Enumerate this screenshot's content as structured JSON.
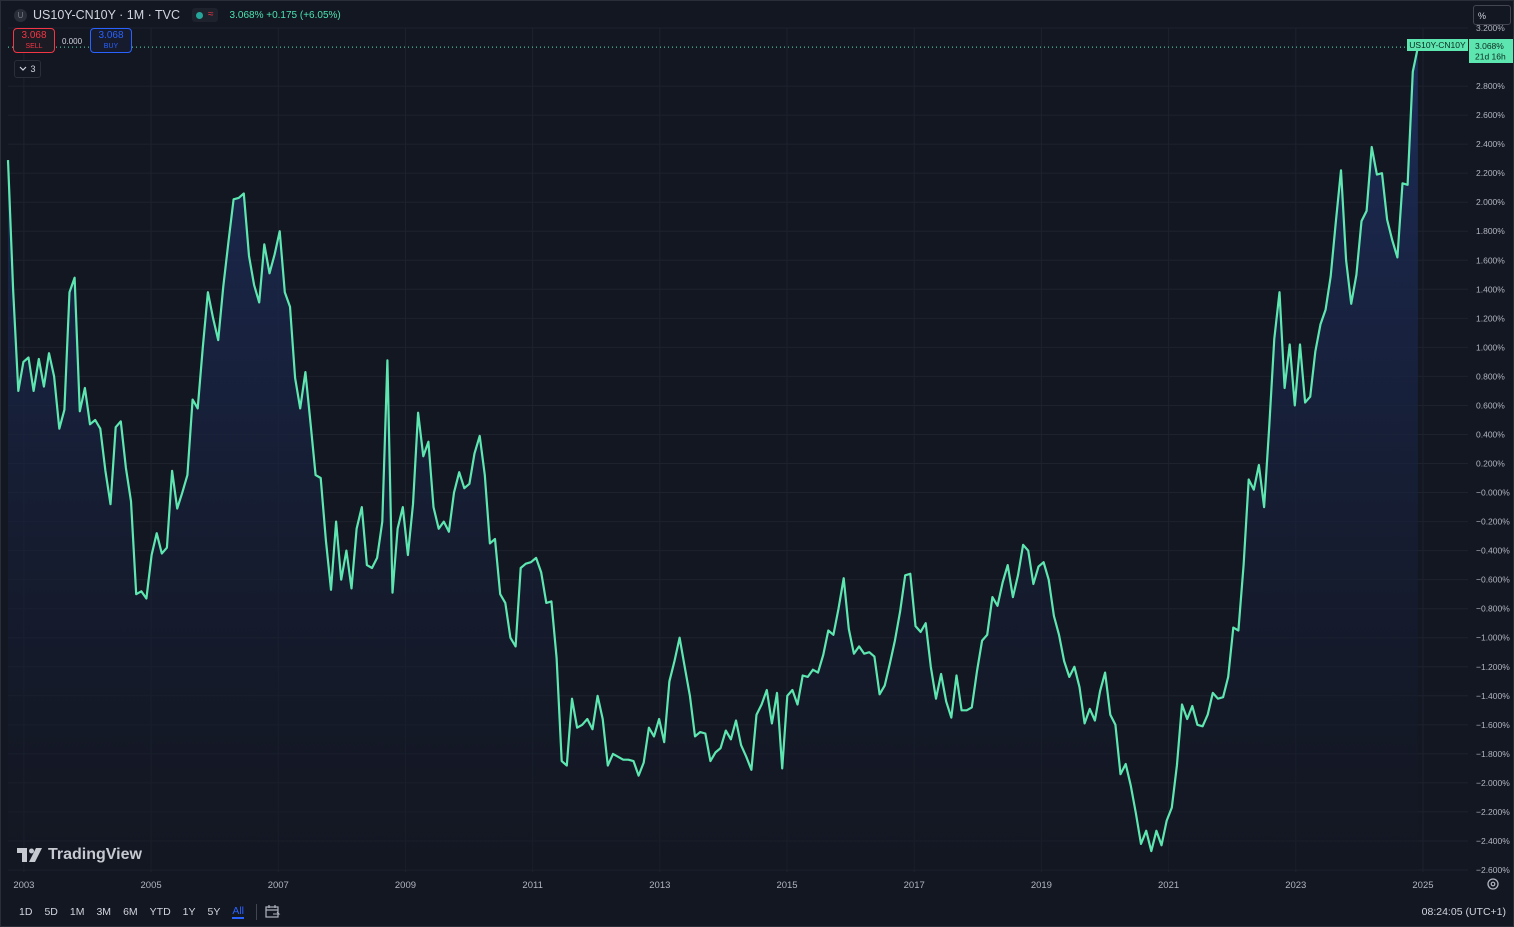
{
  "header": {
    "logo_letter": "U",
    "title": "US10Y-CN10Y · 1M · TVC",
    "quote": "3.068%  +0.175 (+6.05%)"
  },
  "trade": {
    "sell_price": "3.068",
    "sell_label": "SELL",
    "spread": "0.000",
    "buy_price": "3.068",
    "buy_label": "BUY"
  },
  "indicators": {
    "collapse_label": "3"
  },
  "scale": {
    "unit_button": "%"
  },
  "price_tag": {
    "symbol": "US10Y-CN10Y",
    "value": "3.068%",
    "countdown": "21d 16h"
  },
  "watermark": "TradingView",
  "bottom_bar": {
    "ranges": [
      "1D",
      "5D",
      "1M",
      "3M",
      "6M",
      "YTD",
      "1Y",
      "5Y",
      "All"
    ],
    "active_range": "All",
    "clock": "08:24:05 (UTC+1)"
  },
  "colors": {
    "background": "#131722",
    "line": "#5ee6b0",
    "area_top": "#1c2a56",
    "grid": "#1e222d",
    "sell": "#f23645",
    "buy": "#2962ff"
  },
  "chart_data": {
    "type": "area",
    "x_start": 2002.75,
    "x_end": 2024.92,
    "x_step_months": 1,
    "xlim": [
      2002.75,
      2026.4
    ],
    "ylim": [
      -2.6,
      3.2
    ],
    "x_ticks": [
      "2003",
      "2005",
      "2007",
      "2009",
      "2011",
      "2013",
      "2015",
      "2017",
      "2019",
      "2021",
      "2023",
      "2025"
    ],
    "y_ticks": [
      "3.200%",
      "2.800%",
      "2.600%",
      "2.400%",
      "2.200%",
      "2.000%",
      "1.800%",
      "1.600%",
      "1.400%",
      "1.200%",
      "1.000%",
      "0.800%",
      "0.600%",
      "0.400%",
      "0.200%",
      "−0.000%",
      "−0.200%",
      "−0.400%",
      "−0.600%",
      "−0.800%",
      "−1.000%",
      "−1.200%",
      "−1.400%",
      "−1.600%",
      "−1.800%",
      "−2.000%",
      "−2.200%",
      "−2.400%",
      "−2.600%"
    ],
    "y_tick_values": [
      3.2,
      2.8,
      2.6,
      2.4,
      2.2,
      2.0,
      1.8,
      1.6,
      1.4,
      1.2,
      1.0,
      0.8,
      0.6,
      0.4,
      0.2,
      0,
      -0.2,
      -0.4,
      -0.6,
      -0.8,
      -1.0,
      -1.2,
      -1.4,
      -1.6,
      -1.8,
      -2.0,
      -2.2,
      -2.4,
      -2.6
    ],
    "last_value": 3.068,
    "values": [
      2.29,
      1.4,
      0.7,
      0.9,
      0.93,
      0.7,
      0.92,
      0.73,
      0.96,
      0.8,
      0.44,
      0.57,
      1.38,
      1.48,
      0.56,
      0.72,
      0.47,
      0.5,
      0.44,
      0.15,
      -0.08,
      0.45,
      0.49,
      0.17,
      -0.06,
      -0.7,
      -0.68,
      -0.73,
      -0.43,
      -0.28,
      -0.42,
      -0.38,
      0.15,
      -0.11,
      0.0,
      0.12,
      0.64,
      0.58,
      1.0,
      1.38,
      1.2,
      1.05,
      1.42,
      1.73,
      2.02,
      2.03,
      2.06,
      1.63,
      1.43,
      1.31,
      1.71,
      1.51,
      1.64,
      1.8,
      1.38,
      1.28,
      0.79,
      0.58,
      0.83,
      0.48,
      0.12,
      0.1,
      -0.33,
      -0.67,
      -0.2,
      -0.6,
      -0.4,
      -0.66,
      -0.25,
      -0.1,
      -0.5,
      -0.52,
      -0.45,
      -0.2,
      0.91,
      -0.69,
      -0.25,
      -0.1,
      -0.43,
      -0.08,
      0.55,
      0.25,
      0.35,
      -0.1,
      -0.25,
      -0.2,
      -0.27,
      0.0,
      0.14,
      0.03,
      0.06,
      0.27,
      0.39,
      0.12,
      -0.35,
      -0.32,
      -0.7,
      -0.76,
      -1.0,
      -1.06,
      -0.52,
      -0.49,
      -0.48,
      -0.45,
      -0.55,
      -0.76,
      -0.75,
      -1.14,
      -1.85,
      -1.88,
      -1.42,
      -1.62,
      -1.6,
      -1.56,
      -1.63,
      -1.4,
      -1.56,
      -1.88,
      -1.8,
      -1.82,
      -1.84,
      -1.84,
      -1.85,
      -1.95,
      -1.86,
      -1.62,
      -1.68,
      -1.56,
      -1.72,
      -1.3,
      -1.16,
      -1.0,
      -1.2,
      -1.4,
      -1.68,
      -1.65,
      -1.66,
      -1.85,
      -1.79,
      -1.76,
      -1.64,
      -1.7,
      -1.57,
      -1.74,
      -1.82,
      -1.91,
      -1.53,
      -1.46,
      -1.36,
      -1.59,
      -1.38,
      -1.9,
      -1.4,
      -1.36,
      -1.46,
      -1.26,
      -1.27,
      -1.22,
      -1.24,
      -1.12,
      -0.95,
      -0.98,
      -0.8,
      -0.59,
      -0.94,
      -1.11,
      -1.06,
      -1.11,
      -1.1,
      -1.13,
      -1.39,
      -1.33,
      -1.18,
      -1.02,
      -0.82,
      -0.57,
      -0.56,
      -0.92,
      -0.96,
      -0.9,
      -1.2,
      -1.42,
      -1.25,
      -1.44,
      -1.55,
      -1.26,
      -1.5,
      -1.5,
      -1.48,
      -1.23,
      -1.02,
      -0.98,
      -0.72,
      -0.78,
      -0.62,
      -0.5,
      -0.72,
      -0.57,
      -0.36,
      -0.4,
      -0.63,
      -0.51,
      -0.48,
      -0.6,
      -0.85,
      -0.98,
      -1.16,
      -1.27,
      -1.2,
      -1.34,
      -1.59,
      -1.49,
      -1.57,
      -1.37,
      -1.24,
      -1.53,
      -1.6,
      -1.94,
      -1.87,
      -2.02,
      -2.21,
      -2.42,
      -2.33,
      -2.47,
      -2.33,
      -2.43,
      -2.26,
      -2.17,
      -1.88,
      -1.46,
      -1.56,
      -1.47,
      -1.6,
      -1.61,
      -1.53,
      -1.38,
      -1.42,
      -1.41,
      -1.27,
      -0.93,
      -0.95,
      -0.5,
      0.09,
      0.02,
      0.19,
      -0.1,
      0.45,
      1.06,
      1.38,
      0.72,
      1.02,
      0.6,
      1.02,
      0.62,
      0.66,
      0.97,
      1.16,
      1.26,
      1.49,
      1.87,
      2.22,
      1.6,
      1.3,
      1.5,
      1.87,
      1.94,
      2.38,
      2.19,
      2.2,
      1.88,
      1.74,
      1.62,
      2.13,
      2.12,
      2.9,
      3.068
    ]
  }
}
